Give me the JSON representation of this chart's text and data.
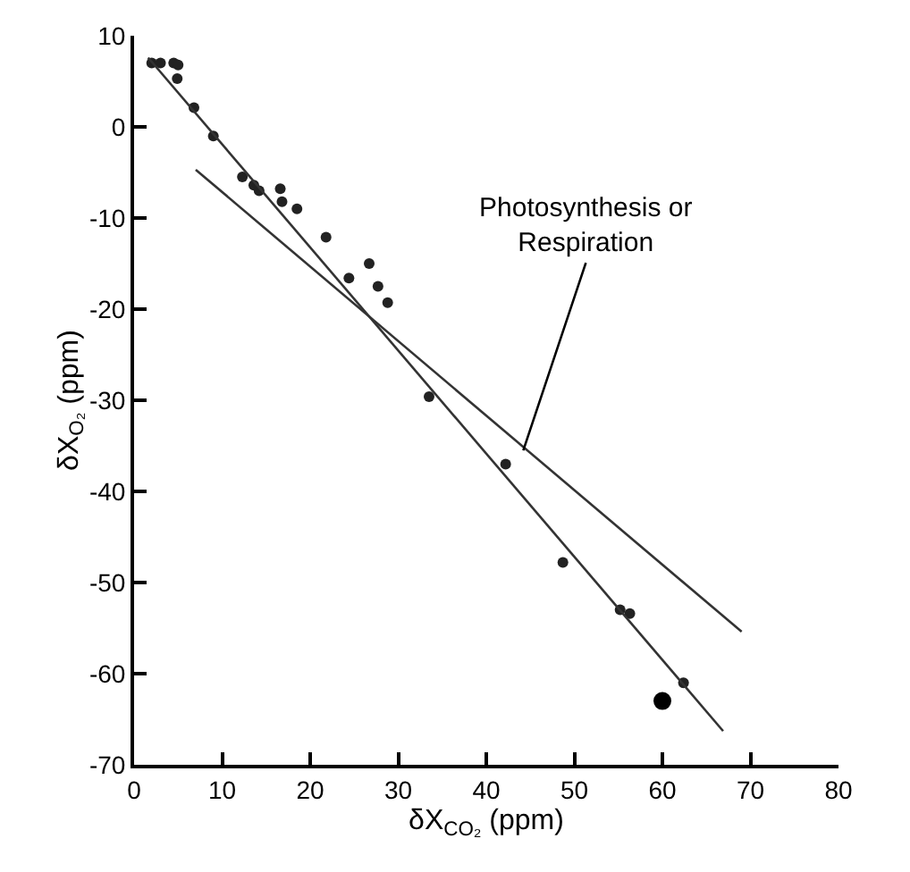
{
  "chart_data": {
    "type": "scatter",
    "xlabel": "δX$_{CO₂}$ (ppm)",
    "ylabel": "δX$_{O₂}$ (ppm)",
    "xlim": [
      0,
      80
    ],
    "ylim": [
      -70,
      10
    ],
    "xticks": [
      0,
      10,
      20,
      30,
      40,
      50,
      60,
      70,
      80
    ],
    "yticks": [
      -70,
      -60,
      -50,
      -40,
      -30,
      -20,
      -10,
      0,
      10
    ],
    "marker": "circle",
    "series": [
      {
        "color": "#222222",
        "x": [
          2,
          3,
          4.5,
          5,
          4.9,
          6.8,
          9,
          12.3,
          13.6,
          14.2,
          16.6,
          16.8,
          18.5,
          21.8,
          24.4,
          26.7,
          27.7,
          28.8,
          33.5,
          42.2,
          48.7,
          55.2,
          56.3,
          62.4
        ],
        "values": [
          7,
          7,
          7,
          6.8,
          5.3,
          2.1,
          -1,
          -5.5,
          -6.4,
          -7,
          -6.8,
          -8.2,
          -9,
          -12.1,
          -16.6,
          -15,
          -17.5,
          -19.3,
          -29.6,
          -37,
          -47.8,
          -53,
          -53.4,
          -61
        ]
      },
      {
        "color": "#000000",
        "x": [
          60
        ],
        "values": [
          -63
        ]
      },
      {
        "type": "line",
        "color": "#333333",
        "line_style": "solid",
        "marker": "none",
        "x": [
          1.6,
          66.9
        ],
        "values": [
          7.6,
          -66.3
        ]
      },
      {
        "type": "line",
        "color": "#333333",
        "line_style": "solid",
        "marker": "none",
        "x": [
          7,
          69
        ],
        "values": [
          -4.7,
          -55.4
        ]
      }
    ],
    "annotations": [
      {
        "text": "Photosynthesis or\nRespiration",
        "x": 44.2,
        "y": -35.5
      }
    ]
  }
}
